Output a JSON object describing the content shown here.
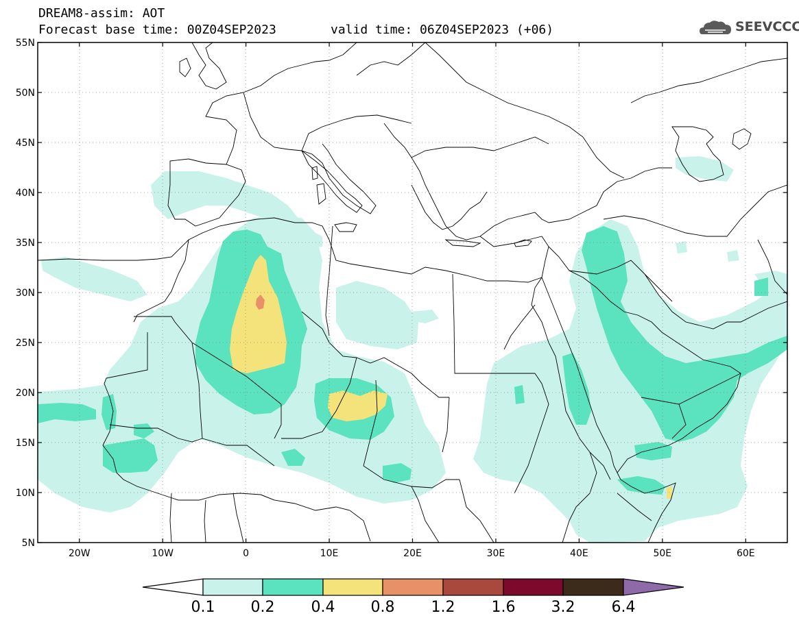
{
  "header": {
    "title": "DREAM8-assim: AOT",
    "base_time": "Forecast base time: 00Z04SEP2023",
    "valid_time": "valid time: 06Z04SEP2023 (+06)",
    "logo_text": "SEEVCCC"
  },
  "map": {
    "projection": "lat-lon",
    "lon_range": [
      -25,
      65
    ],
    "lat_range": [
      5,
      55
    ],
    "lat_labels": [
      "55N",
      "50N",
      "45N",
      "40N",
      "35N",
      "30N",
      "25N",
      "20N",
      "15N",
      "10N",
      "5N"
    ],
    "lat_values": [
      55,
      50,
      45,
      40,
      35,
      30,
      25,
      20,
      15,
      10,
      5
    ],
    "lon_labels": [
      "20W",
      "10W",
      "0",
      "10E",
      "20E",
      "30E",
      "40E",
      "50E",
      "60E"
    ],
    "lon_values": [
      -20,
      -10,
      0,
      10,
      20,
      30,
      40,
      50,
      60
    ],
    "grid": "dotted"
  },
  "colorbar": {
    "levels": [
      "0.1",
      "0.2",
      "0.4",
      "0.8",
      "1.2",
      "1.6",
      "3.2",
      "6.4"
    ],
    "colors": [
      "#ffffff",
      "#c8f2ea",
      "#5be3bf",
      "#f4e37a",
      "#e89068",
      "#a9493d",
      "#7d0a2c",
      "#3c2a1a",
      "#8e6aa9"
    ]
  }
}
